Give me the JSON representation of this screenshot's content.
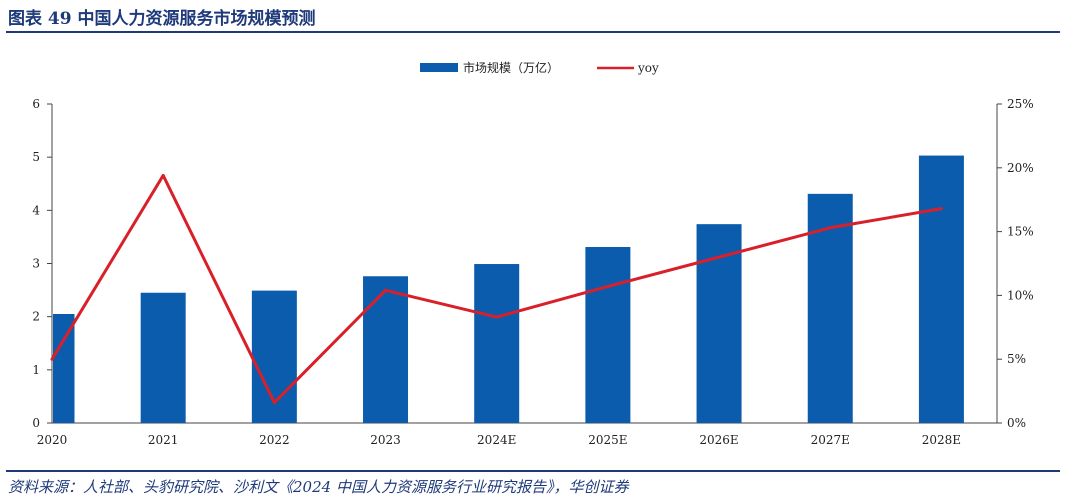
{
  "figure_title": "图表 49   中国人力资源服务市场规模预测",
  "source_text": "资料来源：人社部、头豹研究院、沙利文《2024 中国人力资源服务行业研究报告》，华创证券",
  "chart_data": {
    "type": "bar+line",
    "categories": [
      "2020",
      "2021",
      "2022",
      "2023",
      "2024E",
      "2025E",
      "2026E",
      "2027E",
      "2028E"
    ],
    "series": [
      {
        "name": "市场规模（万亿）",
        "type": "bar",
        "axis": "left",
        "color": "#0b5cad",
        "values": [
          2.05,
          2.45,
          2.49,
          2.76,
          2.99,
          3.31,
          3.74,
          4.31,
          5.03
        ]
      },
      {
        "name": "yoy",
        "type": "line",
        "axis": "right",
        "color": "#d9202a",
        "values": [
          5.0,
          19.4,
          1.6,
          10.4,
          8.3,
          10.7,
          13.0,
          15.3,
          16.8
        ]
      }
    ],
    "y_left": {
      "min": 0,
      "max": 6,
      "ticks": [
        "0",
        "1",
        "2",
        "3",
        "4",
        "5",
        "6"
      ]
    },
    "y_right": {
      "min": 0,
      "max": 25,
      "ticks": [
        "0%",
        "5%",
        "10%",
        "15%",
        "20%",
        "25%"
      ]
    },
    "grid": false,
    "legend_position": "top-center"
  }
}
